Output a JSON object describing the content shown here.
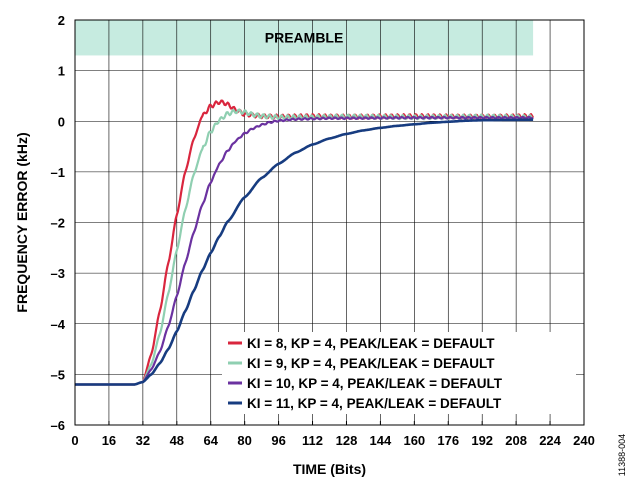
{
  "chart_data": {
    "type": "line",
    "xlabel": "TIME (Bits)",
    "ylabel": "FREQUENCY ERROR (kHz)",
    "xlim": [
      0,
      240
    ],
    "ylim": [
      -6,
      2
    ],
    "x_ticks": [
      "0",
      "16",
      "32",
      "48",
      "64",
      "80",
      "96",
      "112",
      "128",
      "144",
      "160",
      "176",
      "192",
      "208",
      "224",
      "240"
    ],
    "y_ticks": [
      "2",
      "1",
      "0",
      "–1",
      "–2",
      "–3",
      "–4",
      "–5",
      "–6"
    ],
    "grid": true,
    "legend_position": "bottom-right",
    "band": {
      "label": "PREAMBLE",
      "x_start": 0,
      "x_end": 216,
      "y_start": 1.3,
      "y_end": 2.0,
      "color": "#c6ebe0"
    },
    "figure_id": "11388-004",
    "series": [
      {
        "name": "KI = 8, KP = 4, PEAK/LEAK = DEFAULT",
        "color": "#d9263e",
        "x": [
          0,
          28,
          32,
          36,
          40,
          44,
          48,
          52,
          56,
          60,
          64,
          68,
          70,
          72,
          76,
          80,
          88,
          96,
          112,
          128,
          160,
          192,
          216
        ],
        "y": [
          -5.2,
          -5.2,
          -5.15,
          -4.6,
          -3.75,
          -2.8,
          -1.85,
          -1.0,
          -0.35,
          0.1,
          0.3,
          0.38,
          0.37,
          0.33,
          0.22,
          0.14,
          0.1,
          0.09,
          0.1,
          0.09,
          0.1,
          0.09,
          0.1
        ],
        "ripple": 0.04
      },
      {
        "name": "KI = 9, KP = 4, PEAK/LEAK = DEFAULT",
        "color": "#8fcfb1",
        "x": [
          0,
          28,
          32,
          36,
          40,
          44,
          48,
          52,
          56,
          60,
          64,
          68,
          72,
          76,
          80,
          84,
          88,
          96,
          112,
          128,
          160,
          192,
          216
        ],
        "y": [
          -5.2,
          -5.2,
          -5.15,
          -4.8,
          -4.2,
          -3.4,
          -2.55,
          -1.75,
          -1.05,
          -0.55,
          -0.2,
          0.02,
          0.15,
          0.2,
          0.18,
          0.13,
          0.1,
          0.08,
          0.08,
          0.09,
          0.08,
          0.09,
          0.08
        ],
        "ripple": 0.04
      },
      {
        "name": "KI = 10, KP = 4, PEAK/LEAK = DEFAULT",
        "color": "#6b32a0",
        "x": [
          0,
          28,
          32,
          36,
          40,
          44,
          48,
          52,
          56,
          60,
          64,
          68,
          72,
          76,
          80,
          84,
          88,
          92,
          96,
          104,
          112,
          120,
          128,
          160,
          192,
          216
        ],
        "y": [
          -5.2,
          -5.2,
          -5.15,
          -4.9,
          -4.55,
          -4.05,
          -3.45,
          -2.8,
          -2.2,
          -1.65,
          -1.2,
          -0.85,
          -0.58,
          -0.38,
          -0.24,
          -0.14,
          -0.07,
          -0.02,
          0.01,
          0.04,
          0.05,
          0.06,
          0.06,
          0.07,
          0.07,
          0.07
        ],
        "ripple": 0.015
      },
      {
        "name": "KI = 11, KP = 4, PEAK/LEAK = DEFAULT",
        "color": "#173c80",
        "x": [
          0,
          28,
          32,
          36,
          40,
          44,
          48,
          52,
          56,
          60,
          64,
          68,
          72,
          80,
          88,
          96,
          104,
          112,
          120,
          128,
          136,
          144,
          152,
          160,
          168,
          176,
          184,
          192,
          216
        ],
        "y": [
          -5.2,
          -5.2,
          -5.15,
          -5.0,
          -4.78,
          -4.5,
          -4.15,
          -3.75,
          -3.35,
          -2.95,
          -2.6,
          -2.28,
          -1.98,
          -1.5,
          -1.12,
          -0.84,
          -0.62,
          -0.46,
          -0.34,
          -0.25,
          -0.18,
          -0.13,
          -0.09,
          -0.06,
          -0.03,
          -0.01,
          0.01,
          0.02,
          0.03
        ],
        "ripple": 0.0
      }
    ]
  }
}
